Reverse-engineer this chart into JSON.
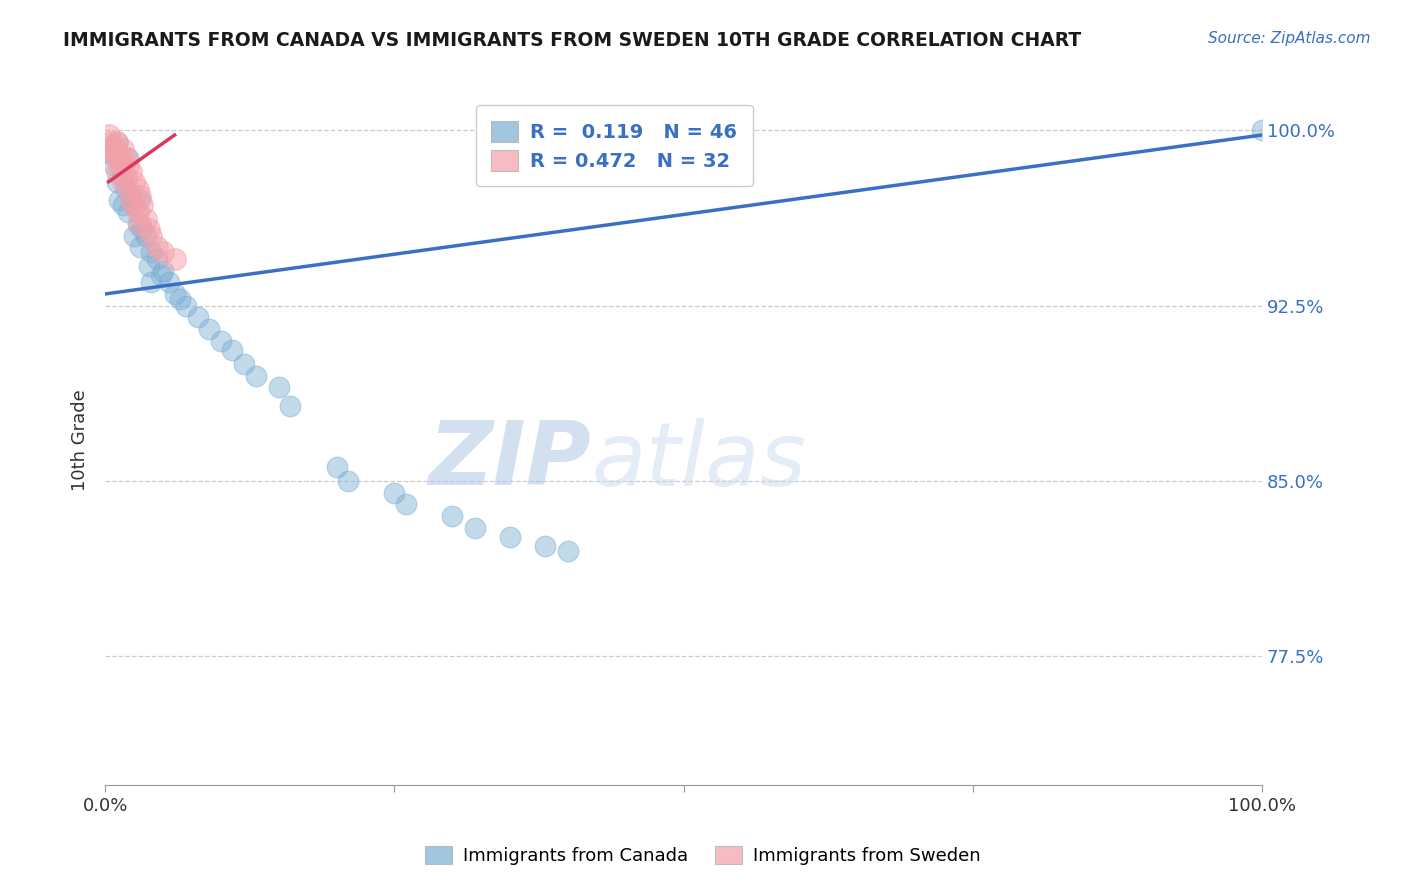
{
  "title": "IMMIGRANTS FROM CANADA VS IMMIGRANTS FROM SWEDEN 10TH GRADE CORRELATION CHART",
  "source": "Source: ZipAtlas.com",
  "ylabel": "10th Grade",
  "xlim": [
    0.0,
    1.0
  ],
  "ylim": [
    0.72,
    1.015
  ],
  "yticks": [
    0.775,
    0.85,
    0.925,
    1.0
  ],
  "ytick_labels": [
    "77.5%",
    "85.0%",
    "92.5%",
    "100.0%"
  ],
  "xticks": [
    0.0,
    0.25,
    0.5,
    0.75,
    1.0
  ],
  "xtick_labels": [
    "0.0%",
    "",
    "",
    "",
    "100.0%"
  ],
  "blue_R": 0.119,
  "blue_N": 46,
  "pink_R": 0.472,
  "pink_N": 32,
  "blue_color": "#7BAFD4",
  "pink_color": "#F4A0A8",
  "blue_line_color": "#3A6FC4",
  "pink_line_color": "#D9395F",
  "tick_label_color": "#3A6FC4",
  "watermark_color": "#C5D8EE",
  "background_color": "#FFFFFF",
  "blue_scatter_x": [
    0.005,
    0.008,
    0.01,
    0.01,
    0.012,
    0.015,
    0.015,
    0.018,
    0.02,
    0.02,
    0.022,
    0.025,
    0.025,
    0.028,
    0.03,
    0.03,
    0.032,
    0.035,
    0.038,
    0.04,
    0.04,
    0.045,
    0.048,
    0.05,
    0.055,
    0.06,
    0.065,
    0.07,
    0.08,
    0.09,
    0.1,
    0.11,
    0.12,
    0.13,
    0.15,
    0.16,
    0.2,
    0.21,
    0.25,
    0.26,
    0.3,
    0.32,
    0.35,
    0.38,
    0.4,
    1.0
  ],
  "blue_scatter_y": [
    0.99,
    0.985,
    0.995,
    0.978,
    0.97,
    0.98,
    0.968,
    0.975,
    0.988,
    0.965,
    0.972,
    0.968,
    0.955,
    0.96,
    0.97,
    0.95,
    0.958,
    0.955,
    0.942,
    0.948,
    0.935,
    0.945,
    0.938,
    0.94,
    0.935,
    0.93,
    0.928,
    0.925,
    0.92,
    0.915,
    0.91,
    0.906,
    0.9,
    0.895,
    0.89,
    0.882,
    0.856,
    0.85,
    0.845,
    0.84,
    0.835,
    0.83,
    0.826,
    0.822,
    0.82,
    1.0
  ],
  "pink_scatter_x": [
    0.003,
    0.005,
    0.006,
    0.008,
    0.008,
    0.01,
    0.01,
    0.01,
    0.012,
    0.013,
    0.015,
    0.015,
    0.015,
    0.018,
    0.018,
    0.02,
    0.02,
    0.022,
    0.022,
    0.025,
    0.025,
    0.028,
    0.028,
    0.03,
    0.03,
    0.032,
    0.035,
    0.038,
    0.04,
    0.045,
    0.05,
    0.06
  ],
  "pink_scatter_y": [
    0.998,
    0.995,
    0.993,
    0.992,
    0.99,
    0.995,
    0.988,
    0.982,
    0.99,
    0.985,
    0.992,
    0.985,
    0.978,
    0.988,
    0.98,
    0.985,
    0.975,
    0.982,
    0.97,
    0.978,
    0.968,
    0.975,
    0.965,
    0.972,
    0.96,
    0.968,
    0.962,
    0.958,
    0.955,
    0.95,
    0.948,
    0.945
  ],
  "blue_trend_x": [
    0.0,
    1.0
  ],
  "blue_trend_y": [
    0.93,
    0.998
  ],
  "pink_trend_x": [
    0.003,
    0.06
  ],
  "pink_trend_y": [
    0.978,
    0.998
  ]
}
